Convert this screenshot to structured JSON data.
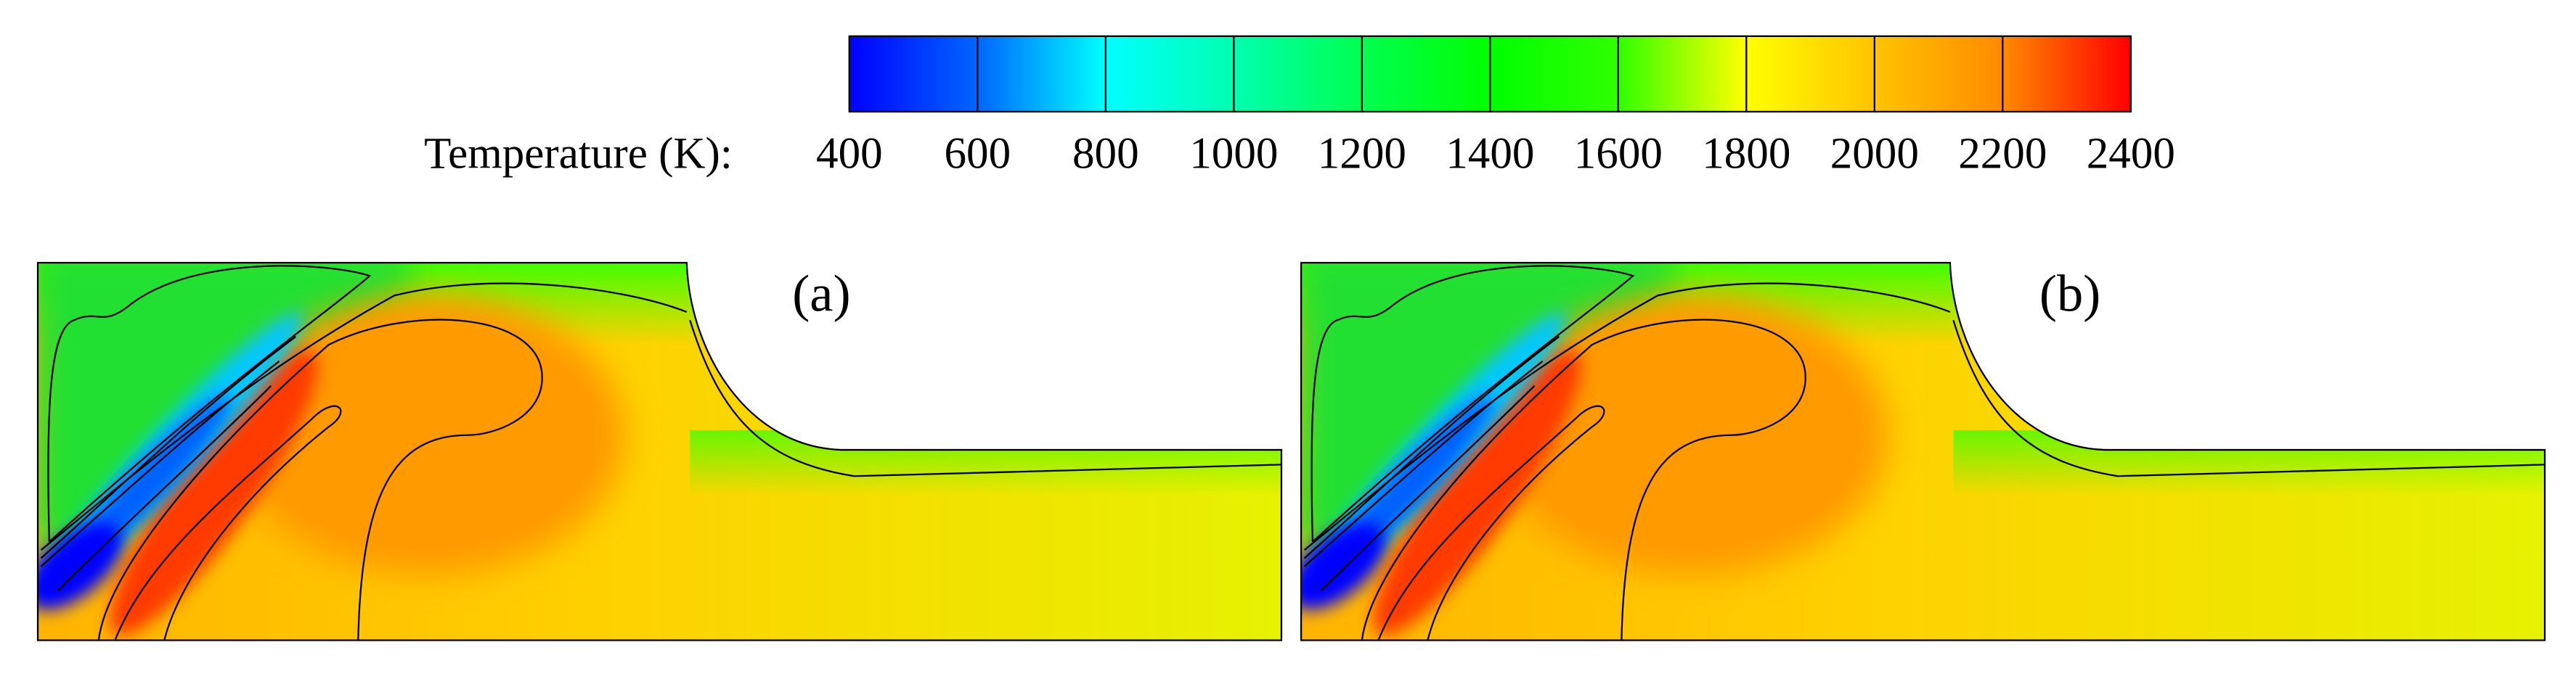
{
  "chart_data": {
    "type": "contour",
    "colorbar_label": "Temperature (K):",
    "zlim": [
      400,
      2400
    ],
    "zticks": [
      400,
      600,
      800,
      1000,
      1200,
      1400,
      1600,
      1800,
      2000,
      2200,
      2400
    ],
    "colors": [
      "#0000ff",
      "#0066ff",
      "#00ffff",
      "#00ffb0",
      "#00ff50",
      "#00ff00",
      "#30ff00",
      "#ffff00",
      "#ffc400",
      "#ff8a00",
      "#ff0000"
    ],
    "panels": [
      {
        "label": "(a)"
      },
      {
        "label": "(b)"
      }
    ]
  }
}
